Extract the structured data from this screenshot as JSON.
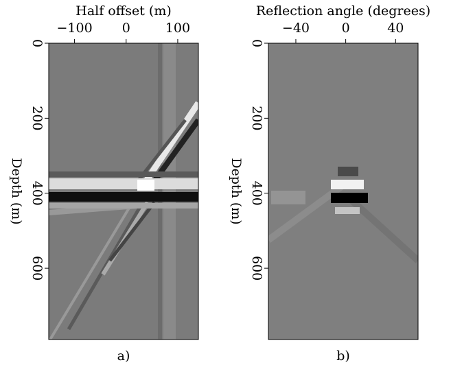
{
  "chart_data": [
    {
      "type": "image",
      "xlabel": "Half offset (m)",
      "ylabel": "Depth (m)",
      "caption": "a)",
      "xlim": [
        -150,
        140
      ],
      "ylim": [
        0,
        790
      ],
      "y_inverted": true,
      "xticks": [
        {
          "value": -100,
          "label": "−100"
        },
        0,
        100
      ],
      "yticks": [
        0,
        200,
        400,
        600
      ]
    },
    {
      "type": "image",
      "xlabel": "Reflection angle (degrees)",
      "ylabel": "Depth (m)",
      "caption": "b)",
      "xlim": [
        -62,
        58
      ],
      "ylim": [
        0,
        790
      ],
      "y_inverted": true,
      "xticks": [
        {
          "value": -40,
          "label": "−40"
        },
        0,
        40
      ],
      "yticks": [
        0,
        200,
        400,
        600
      ]
    }
  ]
}
